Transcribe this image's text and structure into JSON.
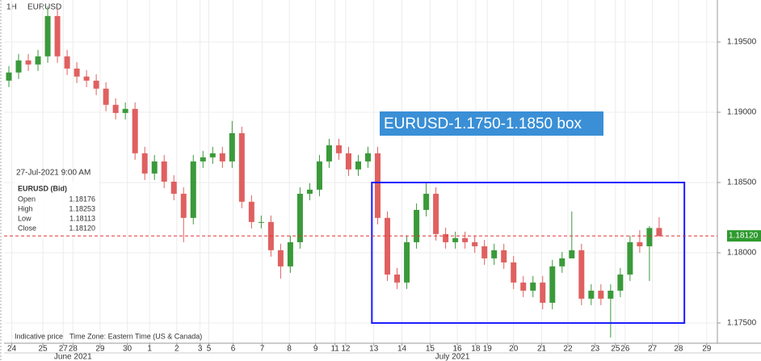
{
  "chart_data": {
    "type": "candlestick",
    "interval": "1H",
    "symbol": "EURUSD",
    "annotation": "EURUSD-1.1750-1.1850 box",
    "box": {
      "x": [
        37.4,
        69.6
      ],
      "y": [
        1.175,
        1.185
      ],
      "color": "#1a1aff"
    },
    "annotation_color": "#3a8fd6",
    "up_color": "#3a9a3a",
    "down_color": "#e06060",
    "x": [
      0,
      1,
      2,
      3,
      4,
      5,
      6,
      7,
      8,
      9,
      10,
      11,
      12,
      13,
      14,
      15,
      16,
      17,
      18,
      19,
      20,
      21,
      22,
      23,
      24,
      25,
      26,
      27,
      28,
      29,
      30,
      31,
      32,
      33,
      34,
      35,
      36,
      37,
      38,
      39,
      40,
      41,
      42,
      43,
      44,
      45,
      46,
      47,
      48,
      49,
      50,
      51,
      52,
      53,
      54,
      55,
      56,
      57,
      58,
      59,
      60,
      61,
      62,
      63,
      64,
      65,
      66,
      67
    ],
    "open": [
      1.19225,
      1.19283,
      1.19369,
      1.1934,
      1.19398,
      1.19685,
      1.19398,
      1.19311,
      1.19254,
      1.19225,
      1.19168,
      1.19053,
      1.18995,
      1.19024,
      1.18708,
      1.18564,
      1.1865,
      1.18506,
      1.1842,
      1.18248,
      1.1865,
      1.18679,
      1.18708,
      1.1865,
      1.18851,
      1.18363,
      1.18219,
      1.18219,
      1.18018,
      1.17903,
      1.18075,
      1.1842,
      1.18449,
      1.1865,
      1.18765,
      1.18708,
      1.18593,
      1.1865,
      1.18708,
      1.18248,
      1.17845,
      1.17788,
      1.18075,
      1.18305,
      1.1842,
      1.18133,
      1.18075,
      1.18104,
      1.18075,
      1.18046,
      1.1796,
      1.18018,
      1.17931,
      1.17788,
      1.1773,
      1.17788,
      1.17644,
      1.17903,
      1.1796,
      1.18018,
      1.17673,
      1.1773,
      1.17673,
      1.1773,
      1.17845,
      1.18075,
      1.18046,
      1.18176
    ],
    "high": [
      1.19329,
      1.19415,
      1.19415,
      1.19444,
      1.19754,
      1.19731,
      1.19444,
      1.19357,
      1.193,
      1.19271,
      1.19214,
      1.19099,
      1.1907,
      1.1907,
      1.18754,
      1.18696,
      1.18696,
      1.18552,
      1.18466,
      1.18696,
      1.18725,
      1.18754,
      1.18754,
      1.18938,
      1.18897,
      1.18409,
      1.18265,
      1.18265,
      1.18064,
      1.18121,
      1.18466,
      1.18495,
      1.18696,
      1.18811,
      1.18811,
      1.18754,
      1.18696,
      1.18754,
      1.18754,
      1.18294,
      1.17891,
      1.18121,
      1.18351,
      1.18501,
      1.18466,
      1.18179,
      1.1815,
      1.1815,
      1.18121,
      1.18092,
      1.18064,
      1.18064,
      1.17977,
      1.17834,
      1.17834,
      1.17834,
      1.17949,
      1.18006,
      1.18294,
      1.18064,
      1.17776,
      1.17776,
      1.17776,
      1.17891,
      1.18121,
      1.18161,
      1.1819,
      1.18253
    ],
    "low": [
      1.19179,
      1.19237,
      1.19294,
      1.19294,
      1.19352,
      1.19352,
      1.19265,
      1.19208,
      1.19179,
      1.19122,
      1.19007,
      1.18949,
      1.18949,
      1.18662,
      1.18518,
      1.18518,
      1.1846,
      1.18374,
      1.18075,
      1.18202,
      1.18604,
      1.18633,
      1.18604,
      1.18604,
      1.18317,
      1.18173,
      1.18173,
      1.17972,
      1.17816,
      1.17857,
      1.18029,
      1.18374,
      1.18403,
      1.18604,
      1.18662,
      1.18547,
      1.18547,
      1.18604,
      1.18202,
      1.17799,
      1.17742,
      1.17742,
      1.18029,
      1.18259,
      1.18087,
      1.18029,
      1.18029,
      1.18029,
      1.18,
      1.17914,
      1.17914,
      1.17885,
      1.17742,
      1.17684,
      1.17684,
      1.17598,
      1.17598,
      1.17857,
      1.17972,
      1.17627,
      1.17627,
      1.17627,
      1.17397,
      1.17684,
      1.17799,
      1.18,
      1.17799,
      1.18113
    ],
    "close": [
      1.19283,
      1.19369,
      1.1934,
      1.19398,
      1.19685,
      1.19398,
      1.19311,
      1.19254,
      1.19225,
      1.19168,
      1.19053,
      1.18995,
      1.19024,
      1.18708,
      1.18564,
      1.1865,
      1.18506,
      1.1842,
      1.18248,
      1.1865,
      1.18679,
      1.18708,
      1.1865,
      1.18851,
      1.18363,
      1.18219,
      1.18219,
      1.18018,
      1.17903,
      1.18075,
      1.1842,
      1.18449,
      1.1865,
      1.18765,
      1.18708,
      1.18593,
      1.1865,
      1.18708,
      1.18248,
      1.17845,
      1.17788,
      1.18075,
      1.18305,
      1.1842,
      1.18133,
      1.18075,
      1.18104,
      1.18075,
      1.18046,
      1.1796,
      1.18018,
      1.17931,
      1.17788,
      1.1773,
      1.17788,
      1.17644,
      1.17903,
      1.1796,
      1.18018,
      1.17673,
      1.1773,
      1.17673,
      1.1773,
      1.17845,
      1.18075,
      1.18046,
      1.18176,
      1.1812
    ],
    "last": {
      "value": 1.1812,
      "label": "1.18120"
    },
    "last_color": "#e03030",
    "xlim": [
      -0.5,
      73
    ],
    "ylim": [
      1.17356,
      1.19799
    ],
    "yticks": [
      {
        "value": 1.175,
        "label": "1.17500"
      },
      {
        "value": 1.18,
        "label": "1.18000"
      },
      {
        "value": 1.185,
        "label": "1.18500"
      },
      {
        "value": 1.19,
        "label": "1.19000"
      },
      {
        "value": 1.195,
        "label": "1.19500"
      }
    ],
    "xticks": [
      {
        "value": 0.3,
        "label": "24"
      },
      {
        "value": 3.5,
        "label": "25"
      },
      {
        "value": 5.6,
        "label": "27"
      },
      {
        "value": 6.6,
        "label": "28"
      },
      {
        "value": 9.4,
        "label": "29"
      },
      {
        "value": 12.2,
        "label": "30"
      },
      {
        "value": 14.5,
        "label": "1"
      },
      {
        "value": 17.3,
        "label": "2"
      },
      {
        "value": 19.7,
        "label": "3"
      },
      {
        "value": 20.6,
        "label": "5"
      },
      {
        "value": 23.1,
        "label": "6"
      },
      {
        "value": 26.1,
        "label": "7"
      },
      {
        "value": 28.9,
        "label": "8"
      },
      {
        "value": 31.6,
        "label": "9"
      },
      {
        "value": 33.6,
        "label": "11"
      },
      {
        "value": 34.7,
        "label": "12"
      },
      {
        "value": 37.6,
        "label": "13"
      },
      {
        "value": 40.5,
        "label": "14"
      },
      {
        "value": 43.4,
        "label": "15"
      },
      {
        "value": 46.2,
        "label": "16"
      },
      {
        "value": 48.1,
        "label": "18"
      },
      {
        "value": 49.3,
        "label": "19"
      },
      {
        "value": 52.0,
        "label": "20"
      },
      {
        "value": 54.9,
        "label": "21"
      },
      {
        "value": 57.6,
        "label": "22"
      },
      {
        "value": 60.4,
        "label": "23"
      },
      {
        "value": 62.5,
        "label": "25"
      },
      {
        "value": 63.5,
        "label": "26"
      },
      {
        "value": 66.3,
        "label": "27"
      },
      {
        "value": 69.0,
        "label": "28"
      },
      {
        "value": 71.9,
        "label": "29"
      }
    ],
    "months": [
      {
        "value": 6.6,
        "label": "June 2021"
      },
      {
        "value": 45.7,
        "label": "July 2021"
      }
    ],
    "grid": true,
    "info": {
      "date": "27-Jul-2021 9:00 AM",
      "title": "EURUSD (Bid)",
      "rows": [
        [
          "Open",
          "1.18176"
        ],
        [
          "High",
          "1.18253"
        ],
        [
          "Low",
          "1.18113"
        ],
        [
          "Close",
          "1.18120"
        ]
      ]
    },
    "footer": [
      "Indicative price",
      "Time Zone: Eastern Time (US & Canada)"
    ]
  }
}
